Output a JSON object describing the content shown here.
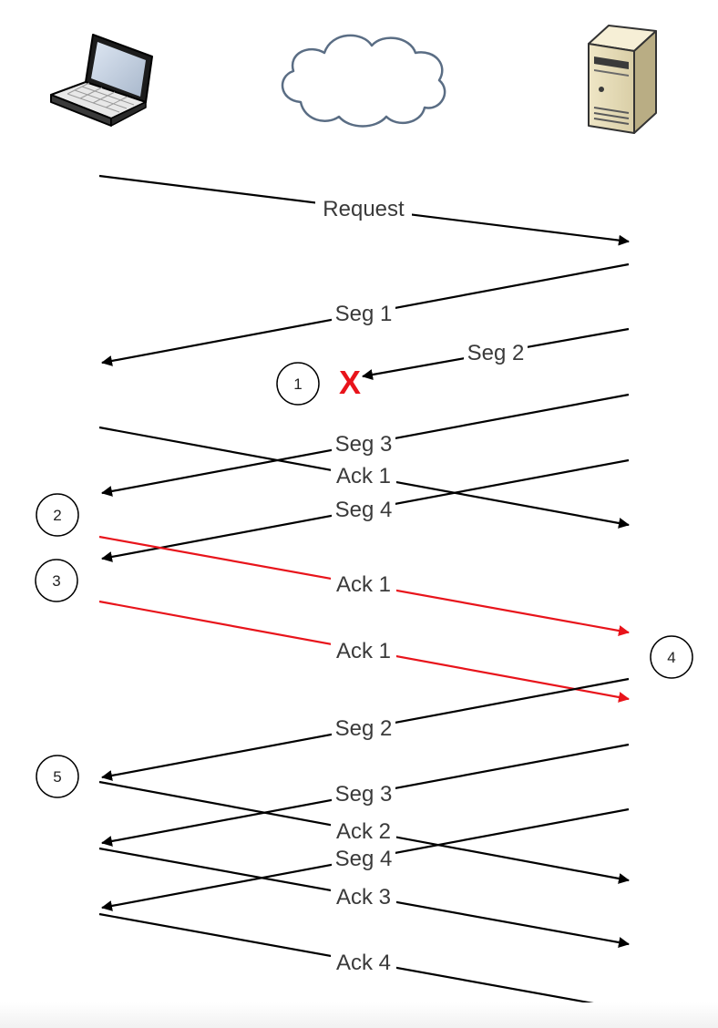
{
  "participants": [
    {
      "role": "client",
      "icon": "laptop-icon"
    },
    {
      "role": "network",
      "icon": "cloud-icon"
    },
    {
      "role": "server",
      "icon": "server-icon"
    }
  ],
  "colors": {
    "normal": "#000000",
    "duplicate_ack": "#e8141b",
    "loss_mark": "#e8141b",
    "label_text": "#3a3a3a"
  },
  "messages": [
    {
      "label": "Request",
      "direction": "to-server",
      "color": "normal"
    },
    {
      "label": "Seg 1",
      "direction": "to-client",
      "color": "normal"
    },
    {
      "label": "Seg 2",
      "direction": "to-client",
      "color": "normal",
      "lost": true
    },
    {
      "label": "Seg 3",
      "direction": "to-client",
      "color": "normal"
    },
    {
      "label": "Ack 1",
      "direction": "to-server",
      "color": "normal"
    },
    {
      "label": "Seg 4",
      "direction": "to-client",
      "color": "normal"
    },
    {
      "label": "Ack 1",
      "direction": "to-server",
      "color": "duplicate_ack"
    },
    {
      "label": "Ack 1",
      "direction": "to-server",
      "color": "duplicate_ack"
    },
    {
      "label": "Seg 2",
      "direction": "to-client",
      "color": "normal"
    },
    {
      "label": "Seg 3",
      "direction": "to-client",
      "color": "normal"
    },
    {
      "label": "Ack 2",
      "direction": "to-server",
      "color": "normal"
    },
    {
      "label": "Seg 4",
      "direction": "to-client",
      "color": "normal"
    },
    {
      "label": "Ack 3",
      "direction": "to-server",
      "color": "normal"
    },
    {
      "label": "Ack 4",
      "direction": "to-server",
      "color": "normal"
    }
  ],
  "loss_marker": "X",
  "steps": [
    "1",
    "2",
    "3",
    "4",
    "5"
  ]
}
